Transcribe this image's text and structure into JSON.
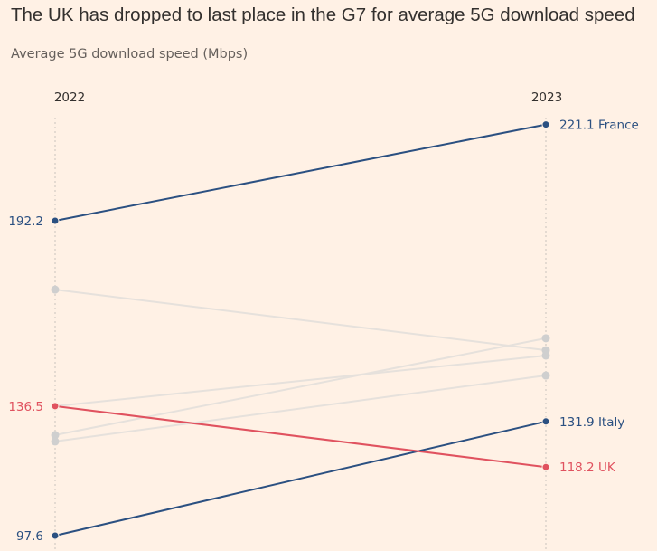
{
  "title": "The UK has dropped to last place in the G7 for average 5G download speed",
  "subtitle": "Average 5G download speed (Mbps)",
  "colors": {
    "background": "#fff1e5",
    "highlight_blue": "#2b5081",
    "uk_red": "#e0525f",
    "other_grey": "#cfcfcf"
  },
  "chart_data": {
    "type": "slope",
    "title": "The UK has dropped to last place in the G7 for average 5G download speed",
    "ylabel": "Average 5G download speed (Mbps)",
    "x": [
      "2022",
      "2023"
    ],
    "grid": false,
    "series": [
      {
        "name": "France",
        "values": [
          192.2,
          221.1
        ],
        "highlight": "blue",
        "labels": [
          "192.2",
          "221.1 France"
        ]
      },
      {
        "name": "Italy",
        "values": [
          97.6,
          131.9
        ],
        "highlight": "blue",
        "labels": [
          "97.6",
          "131.9 Italy"
        ]
      },
      {
        "name": "UK",
        "values": [
          136.5,
          118.2
        ],
        "highlight": "red",
        "labels": [
          "136.5",
          "118.2 UK"
        ]
      },
      {
        "values": [
          171.5,
          153.3
        ],
        "highlight": "grey"
      },
      {
        "values": [
          136.5,
          151.7
        ],
        "highlight": "grey"
      },
      {
        "values": [
          127.8,
          156.9
        ],
        "highlight": "grey"
      },
      {
        "values": [
          125.9,
          145.7
        ],
        "highlight": "grey"
      }
    ]
  }
}
